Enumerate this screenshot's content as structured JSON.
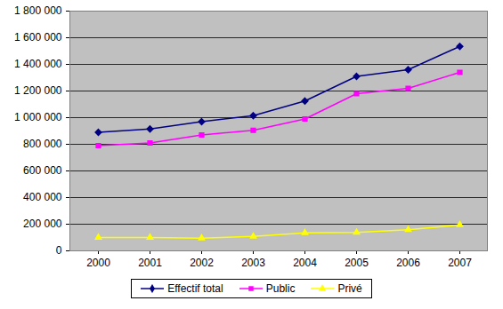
{
  "chart_data": {
    "type": "line",
    "categories": [
      "2000",
      "2001",
      "2002",
      "2003",
      "2004",
      "2005",
      "2006",
      "2007"
    ],
    "series": [
      {
        "name": "Effectif total",
        "color": "#000080",
        "marker": "diamond",
        "values": [
          890000,
          915000,
          970000,
          1015000,
          1125000,
          1310000,
          1360000,
          1535000
        ]
      },
      {
        "name": "Public",
        "color": "#ff00ff",
        "marker": "square",
        "values": [
          790000,
          810000,
          870000,
          905000,
          990000,
          1180000,
          1220000,
          1340000
        ]
      },
      {
        "name": "Privé",
        "color": "#ffff00",
        "marker": "triangle",
        "values": [
          100000,
          100000,
          95000,
          108000,
          135000,
          138000,
          158000,
          195000
        ]
      }
    ],
    "ylim": [
      0,
      1800000
    ],
    "yticks": [
      0,
      {
        "value": 200000,
        "label": "200 000"
      },
      {
        "value": 400000,
        "label": "400 000"
      },
      {
        "value": 600000,
        "label": "600 000"
      },
      {
        "value": 800000,
        "label": "800 000"
      },
      {
        "value": 1000000,
        "label": "1 000 000"
      },
      {
        "value": 1200000,
        "label": "1 200 000"
      },
      {
        "value": 1400000,
        "label": "1 400 000"
      },
      {
        "value": 1600000,
        "label": "1 600 000"
      },
      {
        "value": 1800000,
        "label": "1 800 000"
      }
    ],
    "grid": true,
    "legend": "bottom"
  }
}
